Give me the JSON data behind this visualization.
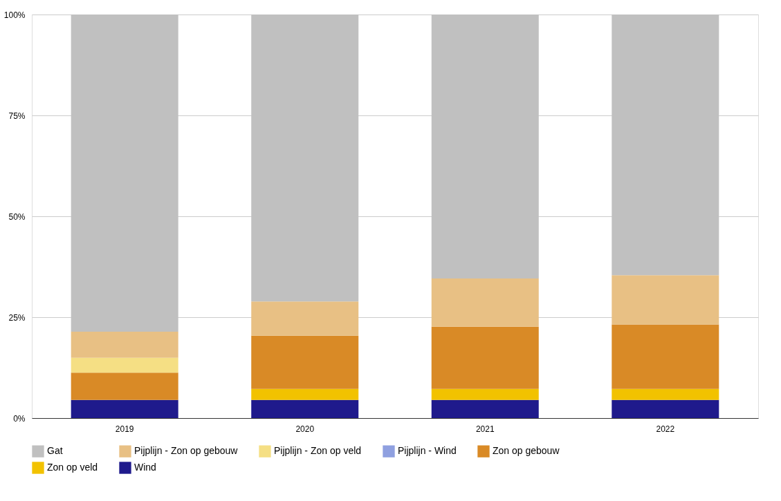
{
  "chart_data": {
    "type": "bar",
    "stacked": true,
    "categories": [
      "2019",
      "2020",
      "2021",
      "2022"
    ],
    "series": [
      {
        "name": "Wind",
        "color": "#1f1a8c",
        "values": [
          4.5,
          4.5,
          4.5,
          4.5
        ]
      },
      {
        "name": "Zon op veld",
        "color": "#f2c200",
        "values": [
          0,
          2.75,
          2.75,
          2.75
        ]
      },
      {
        "name": "Zon op gebouw",
        "color": "#d98a26",
        "values": [
          6.75,
          13.15,
          15.4,
          15.95
        ]
      },
      {
        "name": "Pijplijn - Wind",
        "color": "#8fa0e0",
        "values": [
          0,
          0,
          0,
          0
        ]
      },
      {
        "name": "Pijplijn - Zon op veld",
        "color": "#f5df84",
        "values": [
          3.7,
          0,
          0,
          0
        ]
      },
      {
        "name": "Pijplijn - Zon op gebouw",
        "color": "#e8c084",
        "values": [
          6.45,
          8.5,
          11.95,
          12.2
        ]
      },
      {
        "name": "Gat",
        "color": "#c0c0c0",
        "values": [
          78.6,
          71.1,
          65.4,
          64.6
        ]
      }
    ],
    "ylim": [
      0,
      100
    ],
    "yticks": [
      {
        "value": 0,
        "label": "0%"
      },
      {
        "value": 25,
        "label": "25%"
      },
      {
        "value": 50,
        "label": "50%"
      },
      {
        "value": 75,
        "label": "75%"
      },
      {
        "value": 100,
        "label": "100%"
      }
    ],
    "grid": "y",
    "legend": "bottom"
  }
}
